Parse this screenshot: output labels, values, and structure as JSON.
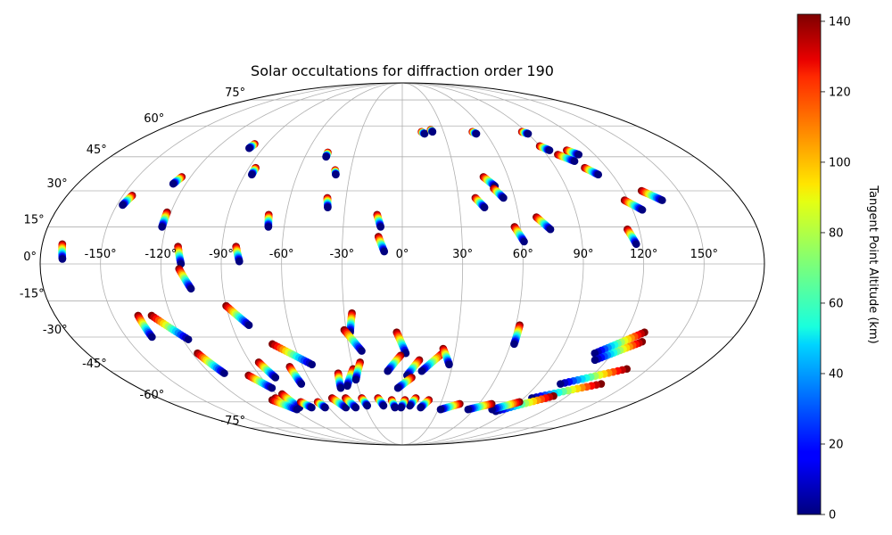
{
  "chart_data": {
    "type": "scatter",
    "projection": "mollweide",
    "title": "Solar occultations for diffraction order 190",
    "grid": true,
    "lon_ticks": [
      -150,
      -120,
      -90,
      -60,
      -30,
      0,
      30,
      60,
      90,
      120,
      150
    ],
    "lat_ticks": [
      -75,
      -60,
      -45,
      -30,
      -15,
      0,
      15,
      30,
      45,
      60,
      75
    ],
    "lon_tick_labels": [
      "-150°",
      "-120°",
      "-90°",
      "-60°",
      "-30°",
      "0°",
      "30°",
      "60°",
      "90°",
      "120°",
      "150°"
    ],
    "lat_tick_labels": [
      "-75°",
      "-60°",
      "-45°",
      "-30°",
      "-15°",
      "0°",
      "15°",
      "30°",
      "45°",
      "60°",
      "75°"
    ],
    "colorbar": {
      "label": "Tangent Point Altitude (km)",
      "colormap": "jet",
      "range": [
        0,
        142
      ],
      "ticks": [
        0,
        20,
        40,
        60,
        80,
        100,
        120,
        140
      ],
      "tick_labels": [
        "0",
        "20",
        "40",
        "60",
        "80",
        "100",
        "120",
        "140"
      ]
    },
    "altitude_range": [
      0,
      142
    ],
    "tracks": [
      {
        "start": [
          -170,
          8
        ],
        "end": [
          -169,
          2
        ]
      },
      {
        "start": [
          -145,
          28
        ],
        "end": [
          -147,
          24
        ]
      },
      {
        "start": [
          -125,
          36
        ],
        "end": [
          -127,
          33
        ]
      },
      {
        "start": [
          -122,
          21
        ],
        "end": [
          -122,
          15
        ]
      },
      {
        "start": [
          -98,
          51
        ],
        "end": [
          -99,
          49
        ]
      },
      {
        "start": [
          -86,
          40
        ],
        "end": [
          -86,
          37
        ]
      },
      {
        "start": [
          -112,
          7
        ],
        "end": [
          -110,
          0
        ]
      },
      {
        "start": [
          -111,
          -2
        ],
        "end": [
          -106,
          -10
        ]
      },
      {
        "start": [
          -83,
          7
        ],
        "end": [
          -81,
          1
        ]
      },
      {
        "start": [
          -69,
          20
        ],
        "end": [
          -68,
          15
        ]
      },
      {
        "start": [
          -47,
          47
        ],
        "end": [
          -47,
          45
        ]
      },
      {
        "start": [
          -39,
          39
        ],
        "end": [
          -38,
          37
        ]
      },
      {
        "start": [
          -40,
          27
        ],
        "end": [
          -39,
          23
        ]
      },
      {
        "start": [
          -13,
          20
        ],
        "end": [
          -11,
          15
        ]
      },
      {
        "start": [
          -12,
          11
        ],
        "end": [
          -9,
          5
        ]
      },
      {
        "start": [
          14,
          57
        ],
        "end": [
          16,
          56
        ]
      },
      {
        "start": [
          21,
          58
        ],
        "end": [
          22,
          57
        ]
      },
      {
        "start": [
          51,
          57
        ],
        "end": [
          53,
          56
        ]
      },
      {
        "start": [
          87,
          57
        ],
        "end": [
          90,
          56
        ]
      },
      {
        "start": [
          90,
          50
        ],
        "end": [
          94,
          48
        ]
      },
      {
        "start": [
          97,
          46
        ],
        "end": [
          104,
          43
        ]
      },
      {
        "start": [
          105,
          48
        ],
        "end": [
          110,
          46
        ]
      },
      {
        "start": [
          107,
          40
        ],
        "end": [
          112,
          37
        ]
      },
      {
        "start": [
          46,
          36
        ],
        "end": [
          51,
          32
        ]
      },
      {
        "start": [
          50,
          31
        ],
        "end": [
          54,
          27
        ]
      },
      {
        "start": [
          39,
          27
        ],
        "end": [
          43,
          23
        ]
      },
      {
        "start": [
          57,
          15
        ],
        "end": [
          61,
          9
        ]
      },
      {
        "start": [
          69,
          19
        ],
        "end": [
          75,
          14
        ]
      },
      {
        "start": [
          118,
          26
        ],
        "end": [
          125,
          22
        ]
      },
      {
        "start": [
          130,
          30
        ],
        "end": [
          138,
          26
        ]
      },
      {
        "start": [
          114,
          14
        ],
        "end": [
          117,
          8
        ]
      },
      {
        "start": [
          -137,
          -21
        ],
        "end": [
          -136,
          -30
        ]
      },
      {
        "start": [
          -130,
          -21
        ],
        "end": [
          -117,
          -31
        ]
      },
      {
        "start": [
          -117,
          -37
        ],
        "end": [
          -111,
          -46
        ]
      },
      {
        "start": [
          -90,
          -17
        ],
        "end": [
          -81,
          -25
        ]
      },
      {
        "start": [
          -72,
          -33
        ],
        "end": [
          -54,
          -42
        ]
      },
      {
        "start": [
          -85,
          -41
        ],
        "end": [
          -81,
          -48
        ]
      },
      {
        "start": [
          -68,
          -43
        ],
        "end": [
          -67,
          -51
        ]
      },
      {
        "start": [
          -97,
          -47
        ],
        "end": [
          -89,
          -53
        ]
      },
      {
        "start": [
          -94,
          -58
        ],
        "end": [
          -88,
          -62
        ]
      },
      {
        "start": [
          -86,
          -56
        ],
        "end": [
          -84,
          -63
        ]
      },
      {
        "start": [
          -26,
          -20
        ],
        "end": [
          -28,
          -28
        ]
      },
      {
        "start": [
          -31,
          -27
        ],
        "end": [
          -23,
          -36
        ]
      },
      {
        "start": [
          -30,
          -44
        ],
        "end": [
          -37,
          -52
        ]
      },
      {
        "start": [
          -25,
          -41
        ],
        "end": [
          -30,
          -49
        ]
      },
      {
        "start": [
          -40,
          -46
        ],
        "end": [
          -42,
          -53
        ]
      },
      {
        "start": [
          -3,
          -28
        ],
        "end": [
          2,
          -37
        ]
      },
      {
        "start": [
          -1,
          -38
        ],
        "end": [
          -9,
          -45
        ]
      },
      {
        "start": [
          10,
          -40
        ],
        "end": [
          3,
          -47
        ]
      },
      {
        "start": [
          6,
          -48
        ],
        "end": [
          -3,
          -53
        ]
      },
      {
        "start": [
          23,
          -37
        ],
        "end": [
          12,
          -45
        ]
      },
      {
        "start": [
          23,
          -35
        ],
        "end": [
          28,
          -42
        ]
      },
      {
        "start": [
          62,
          -25
        ],
        "end": [
          62,
          -33
        ]
      },
      {
        "start": [
          130,
          -28
        ],
        "end": [
          110,
          -37
        ]
      },
      {
        "start": [
          132,
          -32
        ],
        "end": [
          113,
          -40
        ]
      },
      {
        "start": [
          137,
          -44
        ],
        "end": [
          105,
          -51
        ]
      },
      {
        "start": [
          132,
          -51
        ],
        "end": [
          96,
          -58
        ]
      },
      {
        "start": [
          110,
          -57
        ],
        "end": [
          80,
          -65
        ]
      },
      {
        "start": [
          90,
          -60
        ],
        "end": [
          75,
          -64
        ]
      },
      {
        "start": [
          70,
          -61
        ],
        "end": [
          55,
          -64
        ]
      },
      {
        "start": [
          45,
          -61
        ],
        "end": [
          32,
          -64
        ]
      },
      {
        "start": [
          -98,
          -59
        ],
        "end": [
          -88,
          -64
        ]
      },
      {
        "start": [
          -78,
          -60
        ],
        "end": [
          -74,
          -63
        ]
      },
      {
        "start": [
          -65,
          -60
        ],
        "end": [
          -63,
          -63
        ]
      },
      {
        "start": [
          -52,
          -58
        ],
        "end": [
          -46,
          -63
        ]
      },
      {
        "start": [
          -42,
          -58
        ],
        "end": [
          -38,
          -63
        ]
      },
      {
        "start": [
          -30,
          -58
        ],
        "end": [
          -28,
          -62
        ]
      },
      {
        "start": [
          -18,
          -58
        ],
        "end": [
          -15,
          -62
        ]
      },
      {
        "start": [
          -8,
          -59
        ],
        "end": [
          -6,
          -63
        ]
      },
      {
        "start": [
          10,
          -58
        ],
        "end": [
          6,
          -62
        ]
      },
      {
        "start": [
          20,
          -59
        ],
        "end": [
          15,
          -63
        ]
      },
      {
        "start": [
          2,
          -59
        ],
        "end": [
          -1,
          -63
        ]
      }
    ]
  }
}
